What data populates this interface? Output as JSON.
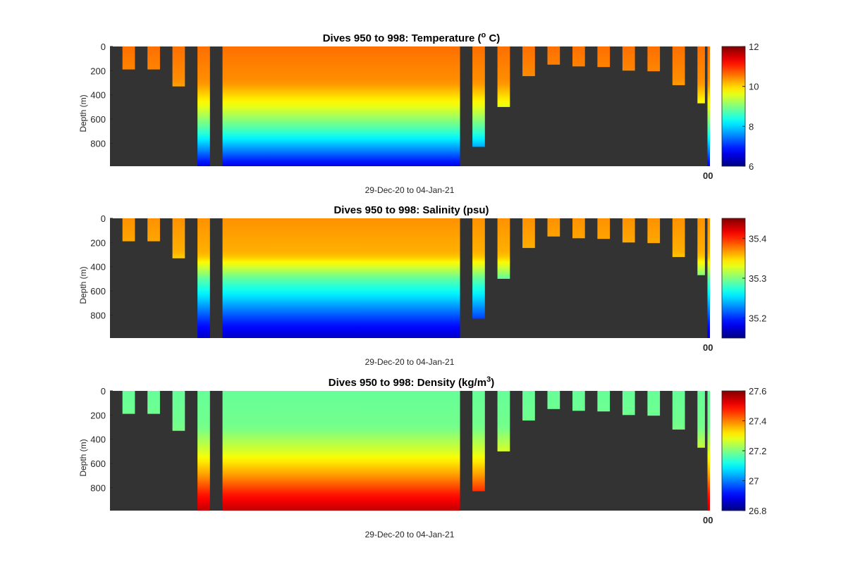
{
  "chart_data": [
    {
      "type": "heatmap",
      "title": "Dives 950 to 998: Temperature (",
      "title_sup": "o",
      "title_end": " C)",
      "ylabel": "Depth (m)",
      "xlabel": "29-Dec-20 to 04-Jan-21",
      "x_tick_glyphs": "00",
      "ylim": [
        0,
        990
      ],
      "y_reversed": true,
      "y_ticks": [
        "0",
        "200",
        "400",
        "600",
        "800"
      ],
      "colorbar": {
        "colormap": "jet",
        "range": [
          6,
          12
        ],
        "ticks": [
          "6",
          "8",
          "10",
          "12"
        ],
        "values": [
          6,
          8,
          10,
          12
        ]
      },
      "profiles_description": "warm ~10.5 near surface, cooling to ~6.5 at 990 m",
      "profile": {
        "surface": 10.6,
        "d300": 10.4,
        "d500": 9.6,
        "d700": 8.6,
        "d850": 7.6,
        "d990": 6.6
      }
    },
    {
      "type": "heatmap",
      "title": "Dives 950 to 998: Salinity (psu)",
      "ylabel": "Depth (m)",
      "xlabel": "29-Dec-20 to 04-Jan-21",
      "x_tick_glyphs": "00",
      "ylim": [
        0,
        990
      ],
      "y_reversed": true,
      "y_ticks": [
        "0",
        "200",
        "400",
        "600",
        "800"
      ],
      "colorbar": {
        "colormap": "jet",
        "range": [
          35.15,
          35.45
        ],
        "ticks": [
          "35.2",
          "35.3",
          "35.4"
        ],
        "values": [
          35.2,
          35.3,
          35.4
        ]
      },
      "profile": {
        "surface": 35.37,
        "d300": 35.36,
        "d500": 35.29,
        "d700": 35.24,
        "d850": 35.2,
        "d990": 35.17
      }
    },
    {
      "type": "heatmap",
      "title": "Dives 950 to 998: Density (kg/m",
      "title_sup": "3",
      "title_end": ")",
      "ylabel": "Depth (m)",
      "xlabel": "29-Dec-20 to 04-Jan-21",
      "x_tick_glyphs": "00",
      "ylim": [
        0,
        990
      ],
      "y_reversed": true,
      "y_ticks": [
        "0",
        "200",
        "400",
        "600",
        "800"
      ],
      "colorbar": {
        "colormap": "jet",
        "range": [
          26.8,
          27.6
        ],
        "ticks": [
          "26.8",
          "27",
          "27.2",
          "27.4",
          "27.6"
        ],
        "values": [
          26.8,
          27.0,
          27.2,
          27.4,
          27.6
        ]
      },
      "profile": {
        "surface": 27.18,
        "d300": 27.19,
        "d500": 27.27,
        "d700": 27.38,
        "d850": 27.48,
        "d990": 27.55
      }
    }
  ],
  "dives": {
    "x_range": [
      0,
      48
    ],
    "short_profiles": [
      {
        "x0": 1,
        "x1": 2,
        "max_depth": 190
      },
      {
        "x0": 3,
        "x1": 4,
        "max_depth": 190
      },
      {
        "x0": 5,
        "x1": 6,
        "max_depth": 330
      },
      {
        "x0": 7,
        "x1": 8,
        "max_depth": 990
      },
      {
        "x0": 9,
        "x1": 28,
        "max_depth": 990
      },
      {
        "x0": 29,
        "x1": 30,
        "max_depth": 830
      },
      {
        "x0": 31,
        "x1": 32,
        "max_depth": 500
      },
      {
        "x0": 33,
        "x1": 34,
        "max_depth": 245
      },
      {
        "x0": 35,
        "x1": 36,
        "max_depth": 150
      },
      {
        "x0": 37,
        "x1": 38,
        "max_depth": 165
      },
      {
        "x0": 39,
        "x1": 40,
        "max_depth": 170
      },
      {
        "x0": 41,
        "x1": 42,
        "max_depth": 200
      },
      {
        "x0": 43,
        "x1": 44,
        "max_depth": 205
      },
      {
        "x0": 45,
        "x1": 46,
        "max_depth": 320
      },
      {
        "x0": 47,
        "x1": 47.6,
        "max_depth": 470
      },
      {
        "x0": 47.8,
        "x1": 48,
        "max_depth": 990
      }
    ]
  },
  "colors": {
    "axes_background": "#333333",
    "figure_background": "#ffffff"
  }
}
